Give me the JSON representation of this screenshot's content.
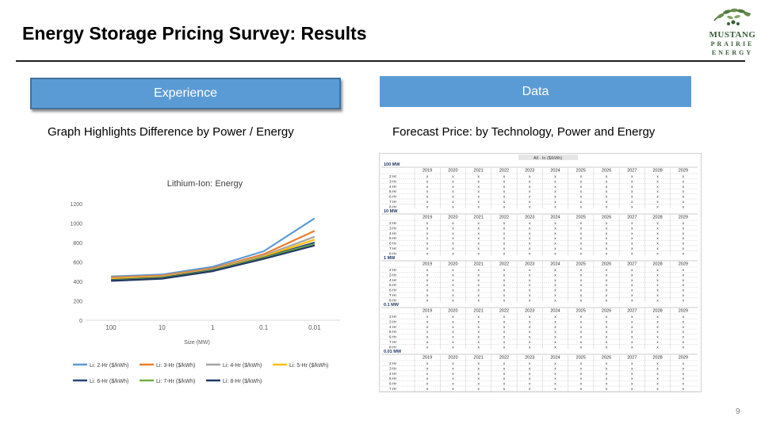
{
  "slide": {
    "title": "Energy Storage Pricing Survey: Results",
    "page_number": "9",
    "logo_text": [
      "MUSTANG",
      "PRAIRIE",
      "ENERGY"
    ]
  },
  "left": {
    "button": "Experience",
    "subtitle": "Graph Highlights Difference by Power / Energy"
  },
  "right": {
    "button": "Data",
    "subtitle": "Forecast Price: by Technology, Power and Energy"
  },
  "colors": {
    "accent": "#5b9bd5",
    "accent_border": "#41719c",
    "series": [
      "#5b9bd5",
      "#ed7d31",
      "#a5a5a5",
      "#ffc000",
      "#264478",
      "#70ad47",
      "#203864"
    ]
  },
  "chart_data": {
    "type": "line",
    "title": "Lithium-Ion: Energy",
    "xlabel": "Size (MW)",
    "ylabel": "",
    "categories": [
      "100",
      "10",
      "1",
      "0.1",
      "0.01"
    ],
    "ylim": [
      0,
      1200
    ],
    "yticks": [
      0,
      200,
      400,
      600,
      800,
      1000,
      1200
    ],
    "grid": false,
    "legend": "bottom",
    "series": [
      {
        "name": "Li: 2-Hr ($/kWh)",
        "values": [
          450,
          470,
          550,
          710,
          1050
        ]
      },
      {
        "name": "Li: 3-Hr ($/kWh)",
        "values": [
          440,
          460,
          535,
          680,
          920
        ]
      },
      {
        "name": "Li: 4-Hr ($/kWh)",
        "values": [
          430,
          450,
          525,
          665,
          860
        ]
      },
      {
        "name": "Li: 5-Hr ($/kWh)",
        "values": [
          425,
          445,
          520,
          655,
          830
        ]
      },
      {
        "name": "Li: 6-Hr ($/kWh)",
        "values": [
          415,
          438,
          515,
          645,
          800
        ]
      },
      {
        "name": "Li: 7-Hr ($/kWh)",
        "values": [
          410,
          432,
          510,
          640,
          785
        ]
      },
      {
        "name": "Li: 8-Hr ($/kWh)",
        "values": [
          405,
          428,
          505,
          632,
          770
        ]
      }
    ]
  },
  "data_table": {
    "header": "All - In ($/kWh)",
    "years": [
      "2019",
      "2020",
      "2021",
      "2022",
      "2023",
      "2024",
      "2025",
      "2026",
      "2027",
      "2028",
      "2029"
    ],
    "row_labels": [
      "2 Hr",
      "3 Hr",
      "4 Hr",
      "5 Hr",
      "6 Hr",
      "7 Hr",
      "8 Hr"
    ],
    "cell_value": "x",
    "blocks": [
      "100 MW",
      "10 MW",
      "1 MW",
      "0.1 MW",
      "0.01 MW"
    ]
  }
}
